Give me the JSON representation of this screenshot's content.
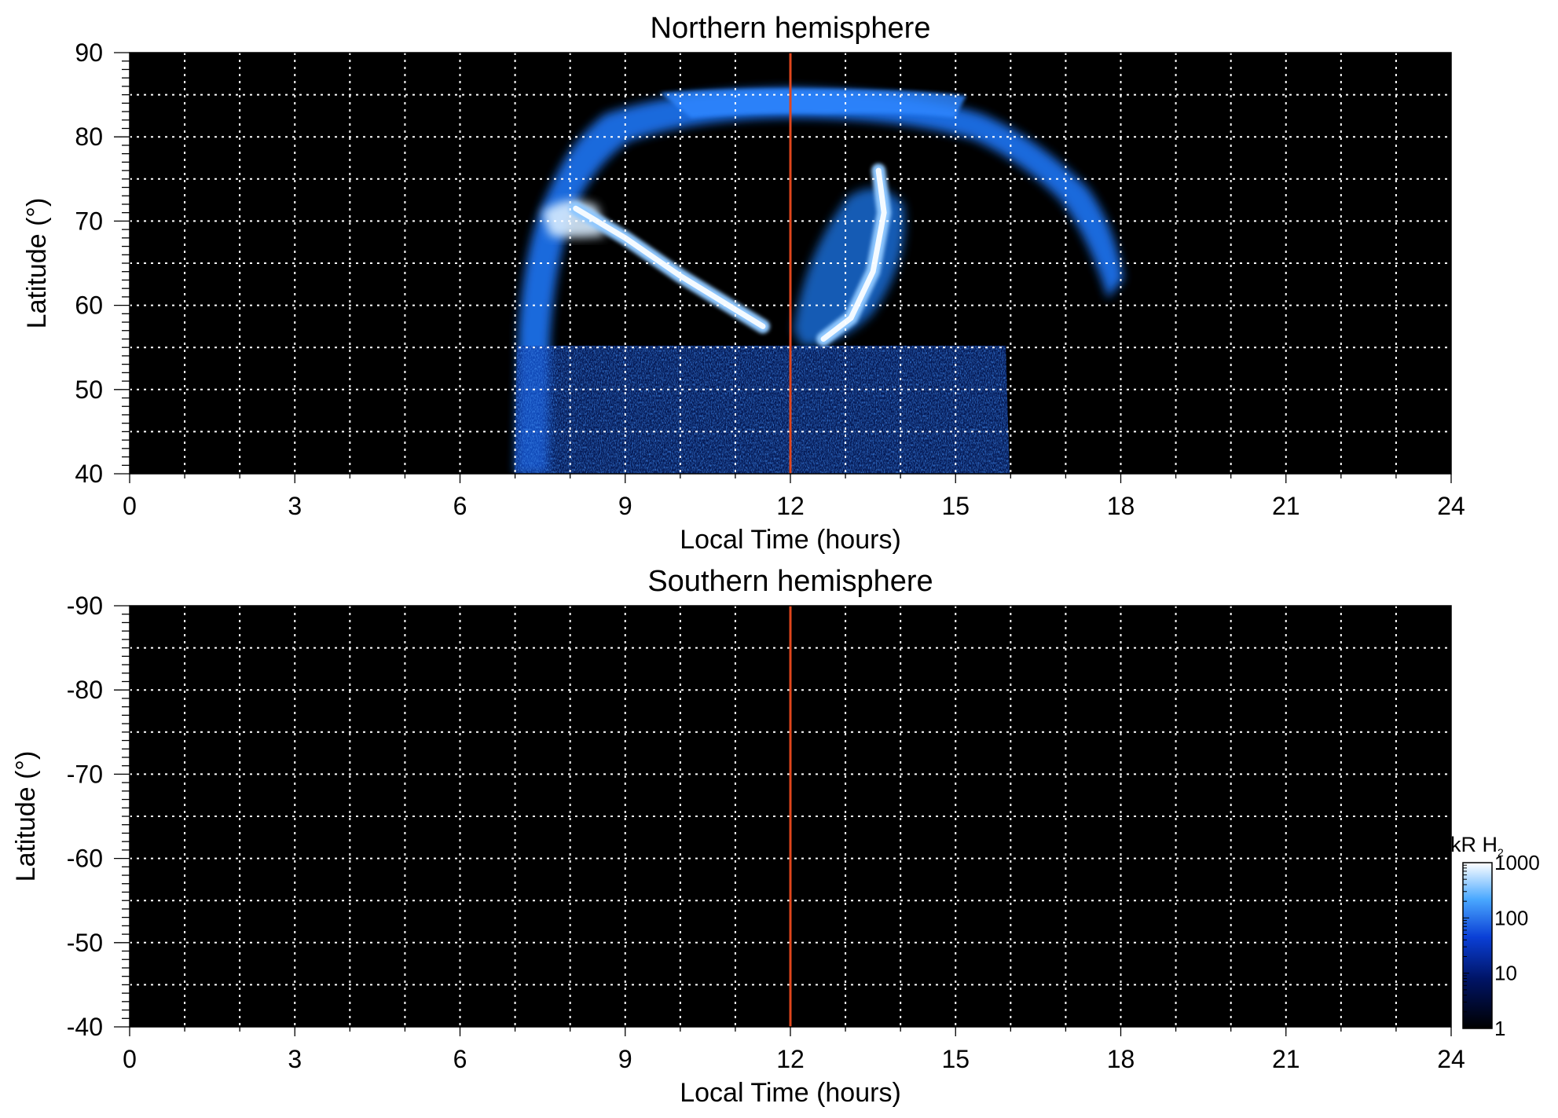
{
  "chart_data": [
    {
      "type": "heatmap",
      "title": "Northern hemisphere",
      "xlabel": "Local Time (hours)",
      "ylabel": "Latitude (°)",
      "xlim": [
        0,
        24
      ],
      "ylim": [
        40,
        90
      ],
      "x_ticks": [
        "0",
        "3",
        "6",
        "9",
        "12",
        "15",
        "18",
        "21",
        "24"
      ],
      "y_ticks": [
        "90",
        "80",
        "70",
        "60",
        "50",
        "40"
      ],
      "x_gridlines_hours": [
        1,
        2,
        3,
        4,
        5,
        6,
        7,
        8,
        9,
        10,
        11,
        12,
        13,
        14,
        15,
        16,
        17,
        18,
        19,
        20,
        21,
        22,
        23
      ],
      "y_gridlines_deg": [
        85,
        80,
        75,
        70,
        65,
        60,
        55,
        50,
        45
      ],
      "reference_line": {
        "x": 12,
        "color": "#e0461c"
      },
      "background": "#000000",
      "emission_features": [
        {
          "kind": "outer-arc-band",
          "description_lt_range": [
            7.0,
            18.0
          ],
          "lat_range": [
            58,
            86
          ]
        },
        {
          "kind": "bright-arc-dawn",
          "points": [
            [
              8.1,
              71.5
            ],
            [
              9.0,
              68
            ],
            [
              10.0,
              63.5
            ],
            [
              11.0,
              59.5
            ],
            [
              11.5,
              57.5
            ]
          ]
        },
        {
          "kind": "bright-arc-noon",
          "points": [
            [
              12.6,
              56
            ],
            [
              13.1,
              58.5
            ],
            [
              13.5,
              64
            ],
            [
              13.7,
              71
            ],
            [
              13.6,
              76
            ]
          ]
        },
        {
          "kind": "diffuse-low-lat",
          "lt_range": [
            7.0,
            16.0
          ],
          "lat_range": [
            40,
            55
          ]
        }
      ]
    },
    {
      "type": "heatmap",
      "title": "Southern hemisphere",
      "xlabel": "Local Time (hours)",
      "ylabel": "Latitude (°)",
      "xlim": [
        0,
        24
      ],
      "ylim": [
        -40,
        -90
      ],
      "x_ticks": [
        "0",
        "3",
        "6",
        "9",
        "12",
        "15",
        "18",
        "21",
        "24"
      ],
      "y_ticks": [
        "-40",
        "-50",
        "-60",
        "-70",
        "-80",
        "-90"
      ],
      "x_gridlines_hours": [
        1,
        2,
        3,
        4,
        5,
        6,
        7,
        8,
        9,
        10,
        11,
        12,
        13,
        14,
        15,
        16,
        17,
        18,
        19,
        20,
        21,
        22,
        23
      ],
      "y_gridlines_deg": [
        -45,
        -50,
        -55,
        -60,
        -65,
        -70,
        -75,
        -80,
        -85
      ],
      "reference_line": {
        "x": 12,
        "color": "#e0461c"
      },
      "background": "#000000",
      "emission_features": []
    }
  ],
  "colorbar": {
    "label": "kR H",
    "label_subscript": "2",
    "scale": "log",
    "ticks": [
      "1000",
      "100",
      "10",
      "1"
    ],
    "colors": [
      "#ffffff",
      "#4aa8ff",
      "#0a3fd6",
      "#001466",
      "#000000"
    ]
  }
}
